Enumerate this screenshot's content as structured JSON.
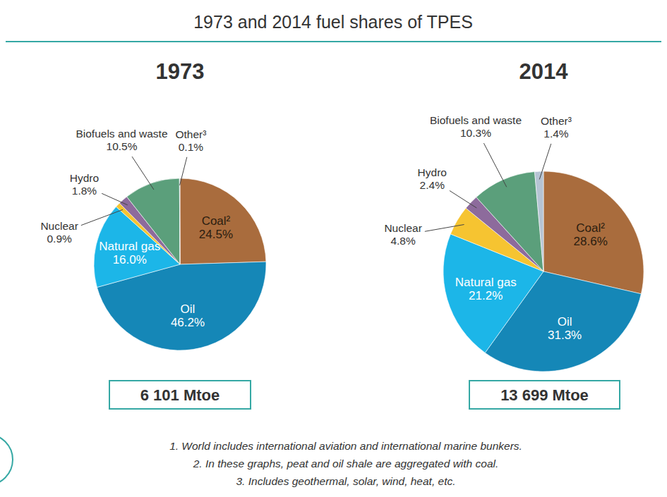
{
  "title": "1973 and 2014 fuel shares of TPES",
  "chart_data": [
    {
      "type": "pie",
      "title": "1973",
      "categories": [
        "Coal²",
        "Oil",
        "Natural gas",
        "Nuclear",
        "Hydro",
        "Biofuels and waste",
        "Other³"
      ],
      "values": [
        24.5,
        46.2,
        16.0,
        0.9,
        1.8,
        10.5,
        0.1
      ],
      "value_labels": [
        "24.5%",
        "46.2%",
        "16.0%",
        "0.9%",
        "1.8%",
        "10.5%",
        "0.1%"
      ],
      "colors": [
        "#a96c3d",
        "#1587b7",
        "#1cb6e8",
        "#f6c431",
        "#8d6b9c",
        "#5b9f7b",
        "#b6c4d4"
      ],
      "data_labels": true,
      "annotations": [
        "6 101 Mtoe"
      ]
    },
    {
      "type": "pie",
      "title": "2014",
      "categories": [
        "Coal²",
        "Oil",
        "Natural gas",
        "Nuclear",
        "Hydro",
        "Biofuels and waste",
        "Other³"
      ],
      "values": [
        28.6,
        31.3,
        21.2,
        4.8,
        2.4,
        10.3,
        1.4
      ],
      "value_labels": [
        "28.6%",
        "31.3%",
        "21.2%",
        "4.8%",
        "2.4%",
        "10.3%",
        "1.4%"
      ],
      "colors": [
        "#a96c3d",
        "#1587b7",
        "#1cb6e8",
        "#f6c431",
        "#8d6b9c",
        "#5b9f7b",
        "#b6c4d4"
      ],
      "data_labels": true,
      "annotations": [
        "13 699 Mtoe"
      ]
    }
  ],
  "notes": [
    "1. World includes international aviation and international marine bunkers.",
    "2. In these graphs, peat and oil shale are aggregated with coal.",
    "3. Includes geothermal, solar, wind, heat, etc."
  ]
}
